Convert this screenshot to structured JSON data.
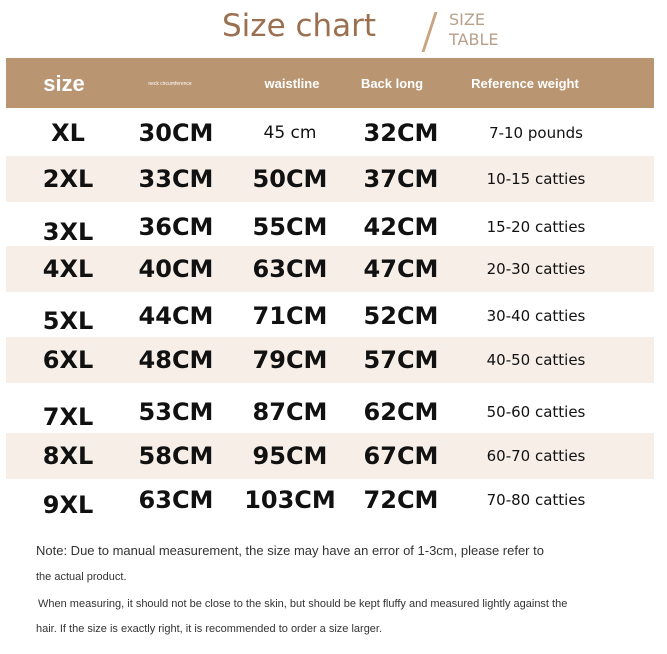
{
  "title": "Size chart",
  "subtitle": [
    "SIZE",
    "TABLE"
  ],
  "colors": {
    "header": "#b99572",
    "title": "#9b7050",
    "shade": "#f6eee7"
  },
  "headers": [
    "size",
    "neck circumference",
    "waistline",
    "Back long",
    "Reference weight"
  ],
  "rows": [
    [
      "XL",
      "30CM",
      "45 cm",
      "32CM",
      "7-10 pounds"
    ],
    [
      "2XL",
      "33CM",
      "50CM",
      "37CM",
      "10-15 catties"
    ],
    [
      "3XL",
      "36CM",
      "55CM",
      "42CM",
      "15-20 catties"
    ],
    [
      "4XL",
      "40CM",
      "63CM",
      "47CM",
      "20-30 catties"
    ],
    [
      "5XL",
      "44CM",
      "71CM",
      "52CM",
      "30-40 catties"
    ],
    [
      "6XL",
      "48CM",
      "79CM",
      "57CM",
      "40-50 catties"
    ],
    [
      "7XL",
      "53CM",
      "87CM",
      "62CM",
      "50-60 catties"
    ],
    [
      "8XL",
      "58CM",
      "95CM",
      "67CM",
      "60-70 catties"
    ],
    [
      "9XL",
      "63CM",
      "103CM",
      "72CM",
      "70-80 catties"
    ]
  ],
  "notes": [
    "Note: Due to manual measurement, the size may have an error of 1-3cm, please refer to",
    "the actual product.",
    "When measuring, it should not be close to the skin, but should be kept fluffy and measured lightly against the",
    "hair. If the size is exactly right, it is recommended to order a size larger."
  ]
}
